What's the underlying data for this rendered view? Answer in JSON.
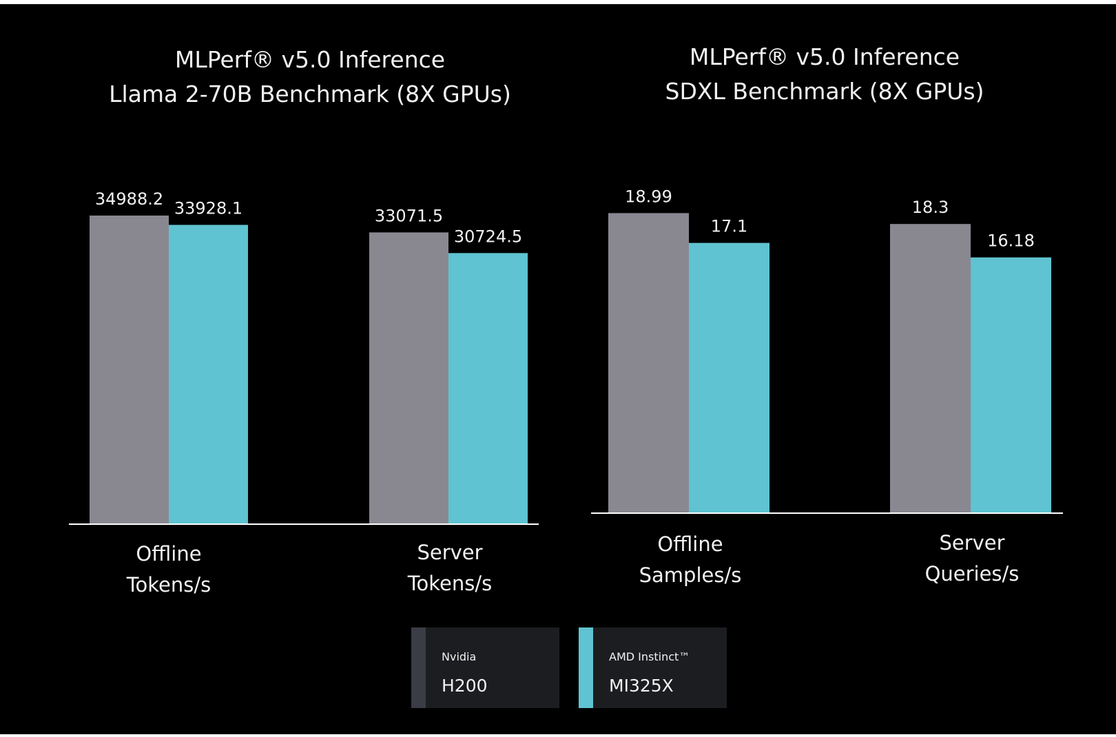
{
  "colors": {
    "background": "#000000",
    "nvidia_bar": "#898891",
    "amd_bar": "#5fc3d1",
    "text": "#f2f2f2",
    "legend_bg": "#1c1d20",
    "nvidia_swatch": "#3a3d45",
    "amd_swatch": "#5fc3d1"
  },
  "legend": [
    {
      "vendor": "Nvidia",
      "model": "H200",
      "color": "#3a3d45"
    },
    {
      "vendor": "AMD Instinct™",
      "model": "MI325X",
      "color": "#5fc3d1"
    }
  ],
  "chart_data": [
    {
      "type": "bar",
      "title": [
        "MLPerf® v5.0 Inference",
        "Llama 2-70B Benchmark (8X GPUs)"
      ],
      "categories": [
        [
          "Offline",
          "Tokens/s"
        ],
        [
          "Server",
          "Tokens/s"
        ]
      ],
      "series": [
        {
          "name": "Nvidia H200",
          "values": [
            34988.2,
            33071.5
          ],
          "labels": [
            "34988.2",
            "33071.5"
          ],
          "color": "#898891"
        },
        {
          "name": "AMD Instinct™ MI325X",
          "values": [
            33928.1,
            30724.5
          ],
          "labels": [
            "33928.1",
            "30724.5"
          ],
          "color": "#5fc3d1"
        }
      ],
      "ylim": [
        0,
        36000
      ],
      "xlabel": "",
      "ylabel": "",
      "grid": false
    },
    {
      "type": "bar",
      "title": [
        "MLPerf® v5.0 Inference",
        "SDXL Benchmark (8X GPUs)"
      ],
      "categories": [
        [
          "Offline",
          "Samples/s"
        ],
        [
          "Server",
          "Queries/s"
        ]
      ],
      "series": [
        {
          "name": "Nvidia H200",
          "values": [
            18.99,
            18.3
          ],
          "labels": [
            "18.99",
            "18.3"
          ],
          "color": "#898891"
        },
        {
          "name": "AMD Instinct™ MI325X",
          "values": [
            17.1,
            16.18
          ],
          "labels": [
            "17.1",
            "16.18"
          ],
          "color": "#5fc3d1"
        }
      ],
      "ylim": [
        0,
        20.1
      ],
      "xlabel": "",
      "ylabel": "",
      "grid": false
    }
  ]
}
